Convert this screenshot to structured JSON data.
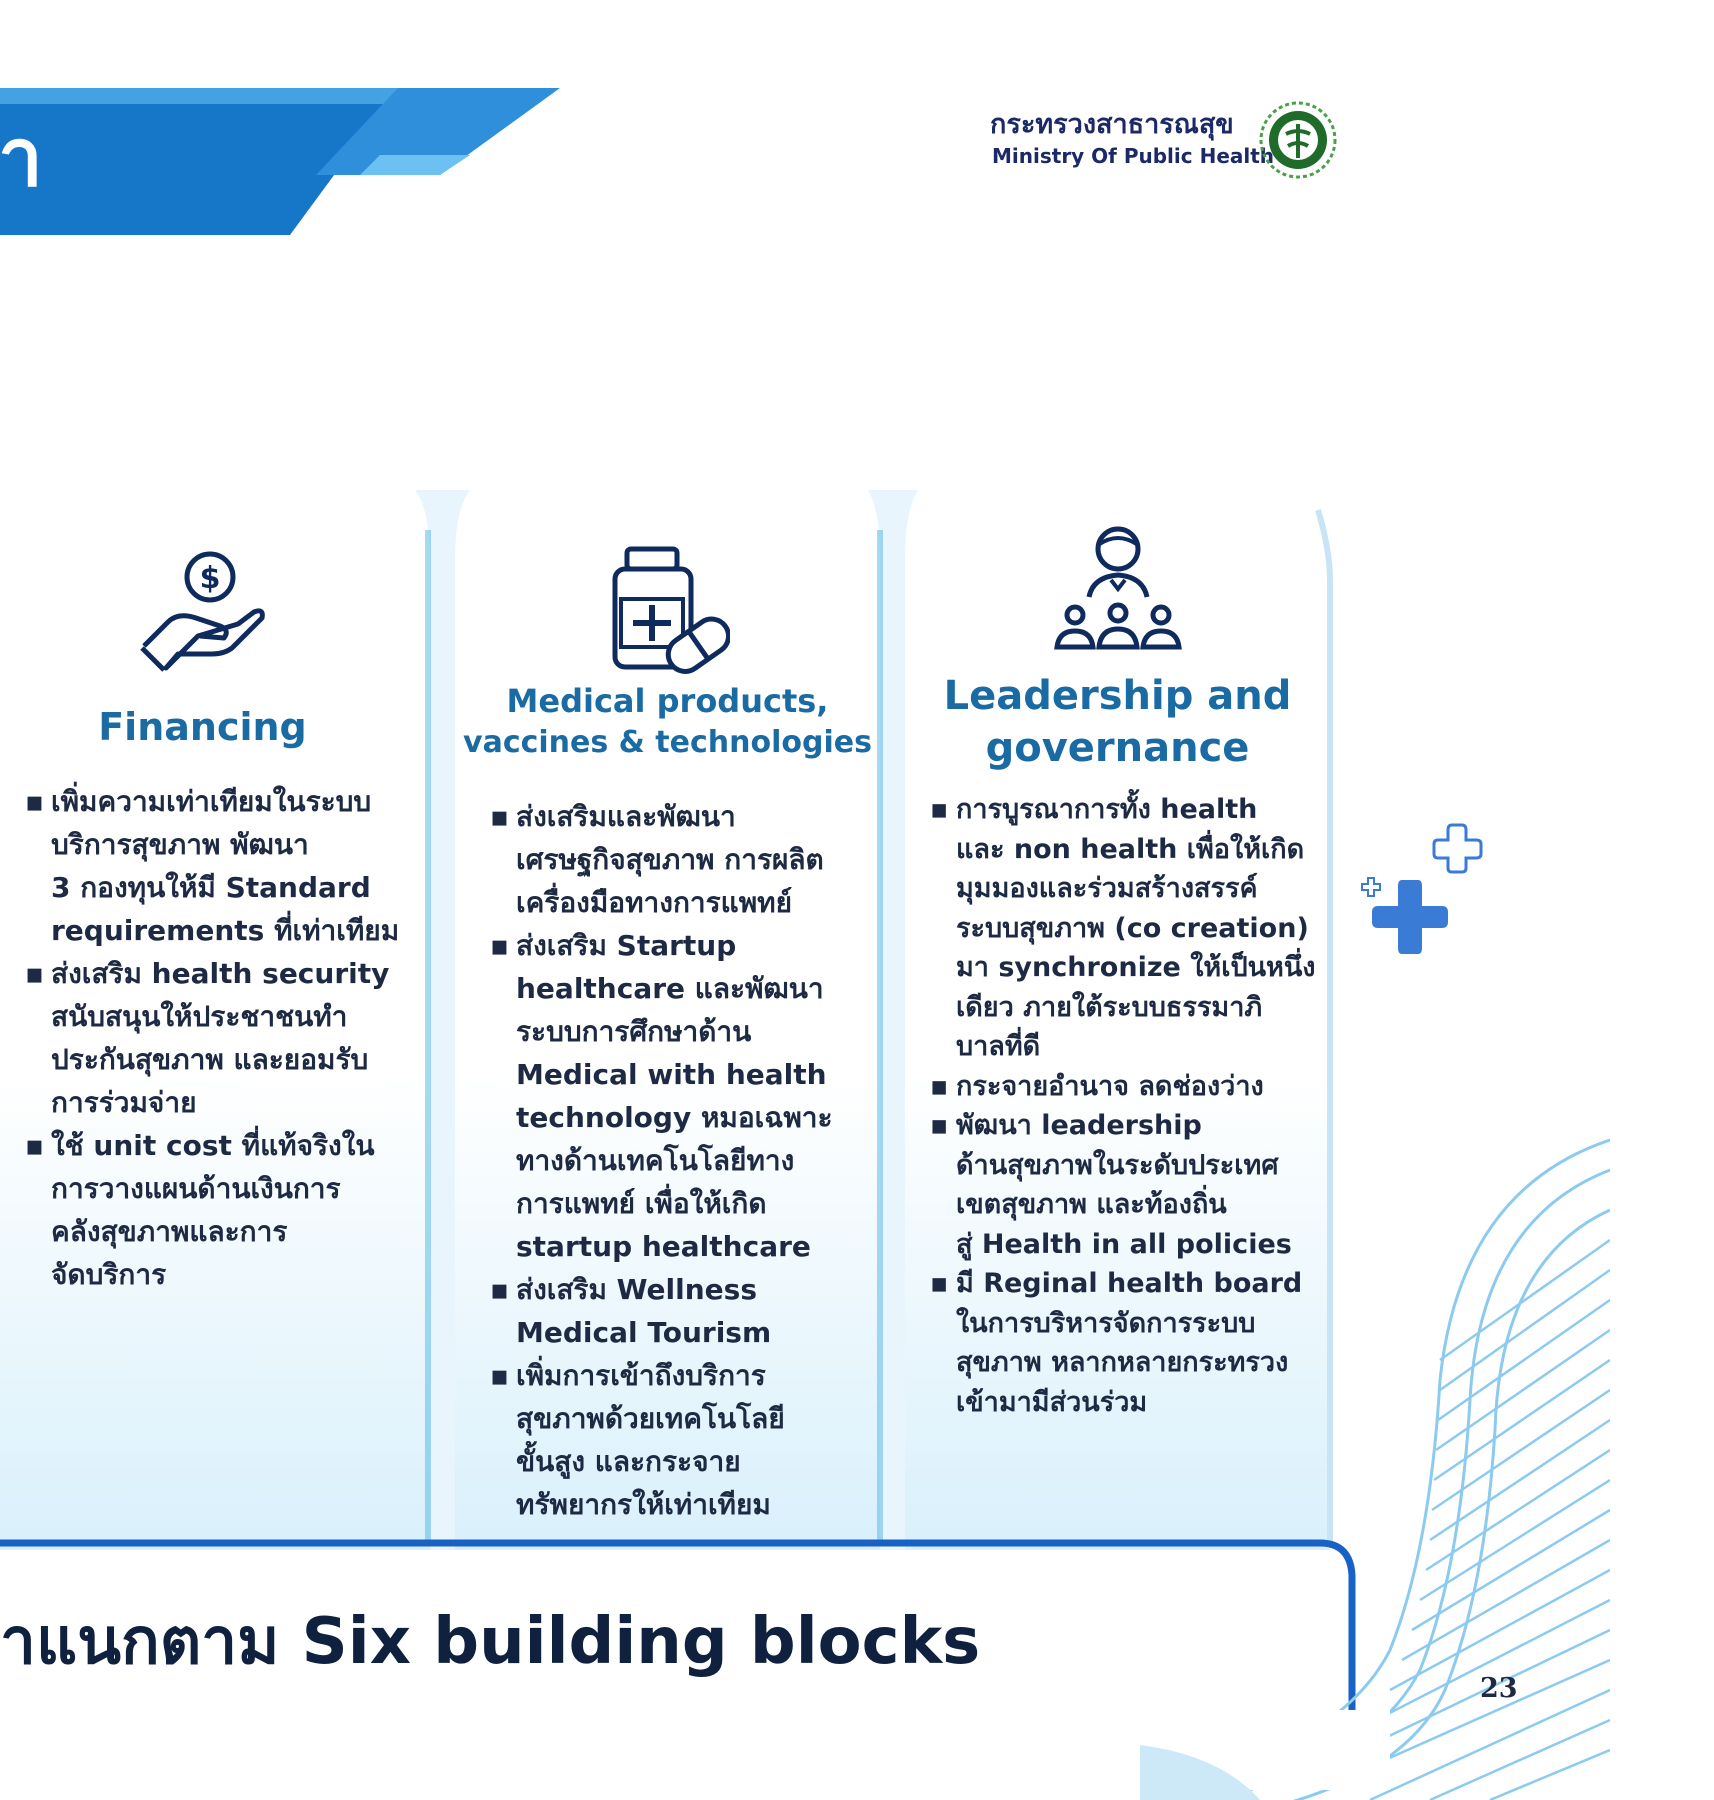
{
  "header": {
    "title_fragment": "า",
    "ministry_name_th": "กระทรวงสาธารณสุข",
    "ministry_name_en": "Ministry Of Public Health",
    "logo_icon": "moph-seal-icon"
  },
  "columns": [
    {
      "heading": "Financing",
      "icon": "hand-coin-icon",
      "bullets": [
        "เพิ่มความเท่าเทียมในระบบ\nบริการสุขภาพ พัฒนา\n3 กองทุนให้มี Standard\nrequirements ที่เท่าเทียม",
        "ส่งเสริม health security\nสนับสนุนให้ประชาชนทำ\nประกันสุขภาพ และยอมรับ\nการร่วมจ่าย",
        "ใช้ unit cost ที่แท้จริงใน\nการวางแผนด้านเงินการ\nคลังสุขภาพและการ\nจัดบริการ"
      ]
    },
    {
      "heading_line1": "Medical products,",
      "heading_line2": "vaccines & technologies",
      "icon": "medicine-bottle-pill-icon",
      "bullets": [
        "ส่งเสริมและพัฒนา\nเศรษฐกิจสุขภาพ การผลิต\nเครื่องมือทางการแพทย์",
        "ส่งเสริม Startup\nhealthcare และพัฒนา\nระบบการศึกษาด้าน\nMedical with health\ntechnology หมอเฉพาะ\nทางด้านเทคโนโลยีทาง\nการแพทย์ เพื่อให้เกิด\nstartup healthcare",
        "ส่งเสริม Wellness\nMedical Tourism",
        "เพิ่มการเข้าถึงบริการ\nสุขภาพด้วยเทคโนโลยี\nขั้นสูง และกระจาย\nทรัพยากรให้เท่าเทียม"
      ]
    },
    {
      "heading_line1": "Leadership and",
      "heading_line2": "governance",
      "icon": "leader-team-icon",
      "bullets": [
        "การบูรณาการทั้ง health\nและ non health เพื่อให้เกิด\nมุมมองและร่วมสร้างสรรค์\nระบบสุขภาพ (co creation)\nมา synchronize ให้เป็นหนึ่ง\nเดียว ภายใต้ระบบธรรมาภิ\nบาลที่ดี",
        "กระจายอำนาจ ลดช่องว่าง",
        "พัฒนา leadership\nด้านสุขภาพในระดับประเทศ\nเขตสุขภาพ และท้องถิ่น\nสู่ Health in all policies",
        "มี Reginal health board\nในการบริหารจัดการระบบ\nสุขภาพ หลากหลายกระทรวง\nเข้ามามีส่วนร่วม"
      ]
    }
  ],
  "footer": {
    "label": "ำแนกตาม Six building blocks",
    "page_number": "23"
  },
  "decor": {
    "plus_icon": "plus-cross-icon",
    "accent_color": "#3a7bd5",
    "banner_color": "#1677c9",
    "text_color": "#1e2a44"
  }
}
